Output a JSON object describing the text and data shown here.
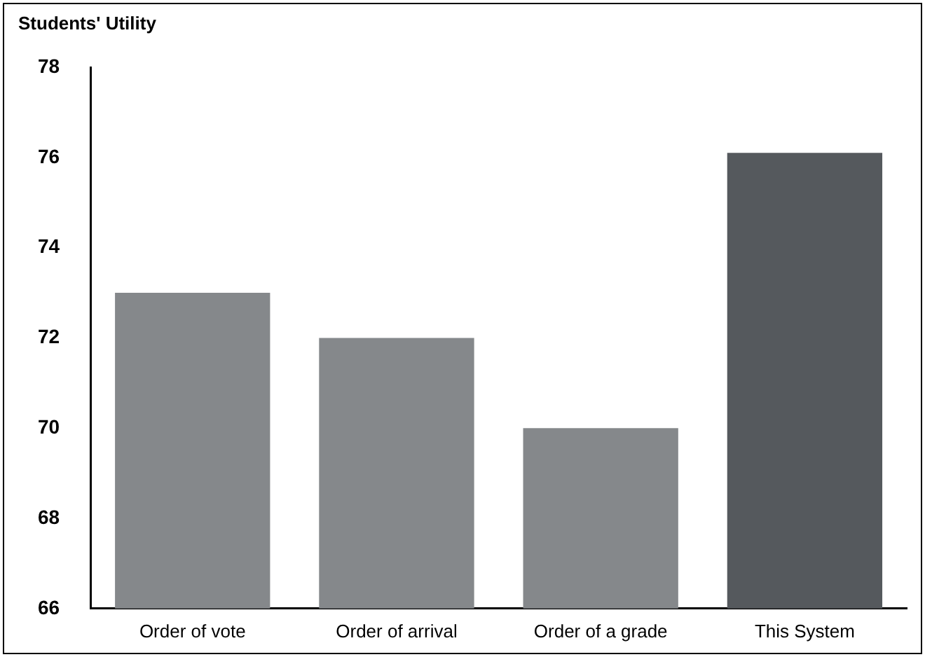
{
  "chart_data": {
    "type": "bar",
    "ylabel": "Students' Utility",
    "categories": [
      "Order of vote",
      "Order of arrival",
      "Order of a grade",
      "This System"
    ],
    "values": [
      73,
      72,
      70,
      76.1
    ],
    "colors": [
      "#85888b",
      "#85888b",
      "#85888b",
      "#55595d"
    ],
    "ylim": [
      66,
      78
    ],
    "yticks": [
      66,
      68,
      70,
      72,
      74,
      76,
      78
    ],
    "grid": false,
    "legend": false
  }
}
